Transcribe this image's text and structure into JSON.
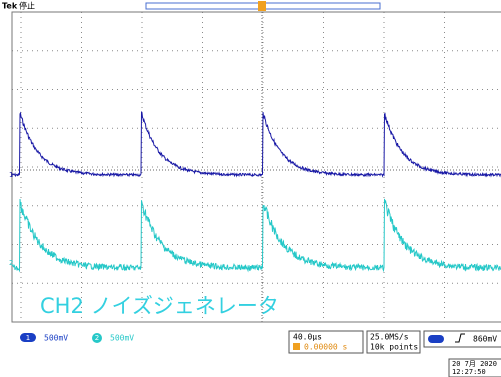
{
  "header": {
    "brand": "Tek",
    "status": "停止"
  },
  "annotation": "CH2 ノイズジェネレータ",
  "channels": [
    {
      "number": "1",
      "scale": "500mV"
    },
    {
      "number": "2",
      "scale": "500mV"
    }
  ],
  "horizontal": {
    "scale": "40.0µs",
    "position": "0.00000 s"
  },
  "acquisition": {
    "rate": "25.0MS/s",
    "length": "10k points"
  },
  "trigger": {
    "level": "860mV"
  },
  "timestamp": {
    "date": "20 7月 2020",
    "time": "12:27:50"
  }
}
